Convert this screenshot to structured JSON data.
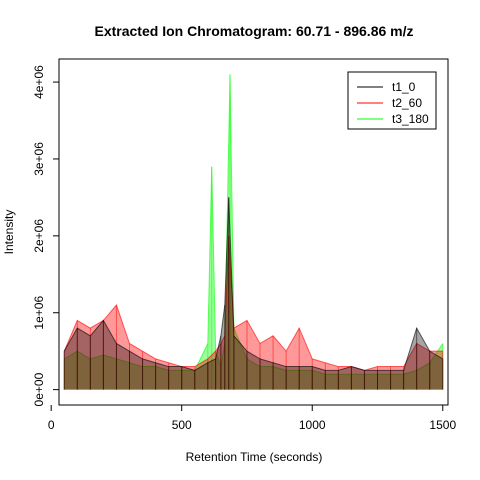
{
  "chart_data": {
    "type": "line",
    "title": "Extracted Ion Chromatogram: 60.71 - 896.86 m/z",
    "xlabel": "Retention Time (seconds)",
    "ylabel": "Intensity",
    "xlim": [
      30,
      1520
    ],
    "ylim": [
      -200000,
      4300000
    ],
    "xticks": [
      0,
      500,
      1000,
      1500
    ],
    "xtick_labels": [
      "0",
      "500",
      "1000",
      "1500"
    ],
    "yticks": [
      0,
      1000000,
      2000000,
      3000000,
      4000000
    ],
    "ytick_labels": [
      "0e+00",
      "1e+06",
      "2e+06",
      "3e+06",
      "4e+06"
    ],
    "grid": false,
    "legend_position": "top-right",
    "series": [
      {
        "name": "t1_0",
        "color": "#000000",
        "x": [
          50,
          100,
          150,
          200,
          250,
          300,
          350,
          400,
          450,
          500,
          550,
          600,
          630,
          650,
          665,
          680,
          700,
          750,
          800,
          850,
          900,
          950,
          1000,
          1050,
          1100,
          1150,
          1200,
          1250,
          1300,
          1350,
          1400,
          1450,
          1500
        ],
        "values": [
          500000,
          800000,
          700000,
          900000,
          600000,
          500000,
          400000,
          350000,
          300000,
          300000,
          250000,
          350000,
          400000,
          700000,
          1100000,
          2500000,
          700000,
          500000,
          400000,
          350000,
          300000,
          300000,
          300000,
          250000,
          250000,
          300000,
          250000,
          250000,
          250000,
          250000,
          800000,
          500000,
          400000
        ]
      },
      {
        "name": "t2_60",
        "color": "#FF0000",
        "x": [
          50,
          100,
          150,
          200,
          250,
          300,
          350,
          400,
          450,
          500,
          550,
          600,
          630,
          650,
          665,
          680,
          700,
          750,
          800,
          850,
          900,
          950,
          1000,
          1050,
          1100,
          1150,
          1200,
          1250,
          1300,
          1350,
          1400,
          1450,
          1500
        ],
        "values": [
          500000,
          900000,
          800000,
          900000,
          1100000,
          600000,
          500000,
          400000,
          350000,
          300000,
          300000,
          400000,
          500000,
          600000,
          700000,
          2000000,
          800000,
          900000,
          600000,
          700000,
          500000,
          800000,
          400000,
          350000,
          300000,
          300000,
          250000,
          300000,
          300000,
          300000,
          600000,
          500000,
          500000
        ]
      },
      {
        "name": "t3_180",
        "color": "#00FF00",
        "x": [
          50,
          100,
          150,
          200,
          250,
          300,
          350,
          400,
          450,
          500,
          550,
          600,
          615,
          630,
          650,
          665,
          685,
          700,
          750,
          800,
          850,
          900,
          950,
          1000,
          1050,
          1100,
          1150,
          1200,
          1250,
          1300,
          1350,
          1400,
          1450,
          1500
        ],
        "values": [
          400000,
          500000,
          400000,
          450000,
          400000,
          350000,
          300000,
          300000,
          250000,
          250000,
          250000,
          600000,
          2900000,
          500000,
          300000,
          600000,
          4100000,
          800000,
          400000,
          300000,
          300000,
          250000,
          250000,
          250000,
          200000,
          200000,
          200000,
          200000,
          200000,
          200000,
          200000,
          250000,
          350000,
          600000
        ]
      }
    ]
  }
}
